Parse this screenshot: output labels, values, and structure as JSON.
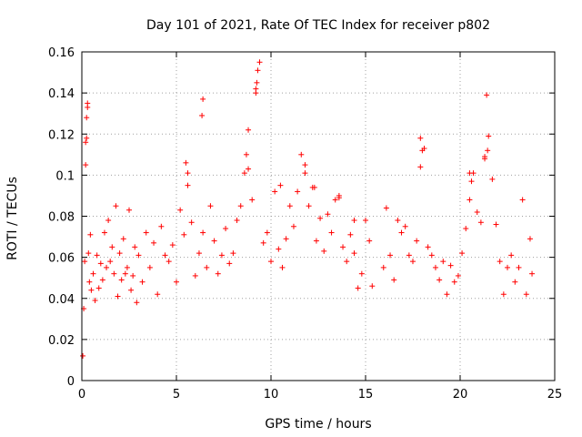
{
  "chart_data": {
    "type": "scatter",
    "title": "Day 101 of 2021, Rate Of TEC Index for receiver p802",
    "xlabel": "GPS time / hours",
    "ylabel": "ROTI / TECUs",
    "xlim": [
      0,
      25
    ],
    "ylim": [
      0,
      0.16
    ],
    "xticks": [
      0,
      5,
      10,
      15,
      20,
      25
    ],
    "xtick_labels": [
      "0",
      "5",
      "10",
      "15",
      "20",
      "25"
    ],
    "yticks": [
      0,
      0.02,
      0.04,
      0.06,
      0.08,
      0.1,
      0.12,
      0.14,
      0.16
    ],
    "ytick_labels": [
      "0",
      "0.02",
      "0.04",
      "0.06",
      "0.08",
      "0.1",
      "0.12",
      "0.14",
      "0.16"
    ],
    "grid": true,
    "marker": "+",
    "marker_color": "#ff0000",
    "data_gap_hours": [
      15.4,
      15.9
    ],
    "series": [
      {
        "name": "ROTI",
        "x": [
          0.05,
          0.1,
          0.15,
          0.2,
          0.25,
          0.3,
          0.35,
          0.4,
          0.45,
          0.5,
          0.6,
          0.7,
          0.8,
          0.9,
          1.0,
          1.1,
          1.2,
          1.3,
          1.4,
          1.5,
          1.6,
          1.7,
          1.8,
          1.9,
          2.0,
          2.1,
          2.2,
          2.3,
          2.4,
          2.5,
          2.6,
          2.7,
          2.8,
          2.9,
          3.0,
          3.2,
          3.4,
          3.6,
          3.8,
          4.0,
          4.2,
          4.4,
          4.6,
          4.8,
          5.0,
          5.2,
          5.4,
          5.6,
          5.8,
          6.0,
          6.2,
          6.4,
          6.6,
          6.8,
          7.0,
          7.2,
          7.4,
          7.6,
          7.8,
          8.0,
          8.2,
          8.4,
          8.6,
          8.8,
          9.0,
          9.2,
          9.4,
          9.6,
          9.8,
          10.0,
          10.2,
          10.4,
          10.6,
          10.8,
          11.0,
          11.2,
          11.4,
          11.6,
          11.8,
          12.0,
          12.2,
          12.4,
          12.6,
          12.8,
          13.0,
          13.2,
          13.4,
          13.6,
          13.8,
          14.0,
          14.2,
          14.4,
          14.6,
          14.8,
          15.0,
          15.2,
          15.35,
          15.95,
          16.1,
          16.3,
          16.5,
          16.7,
          16.9,
          17.1,
          17.3,
          17.5,
          17.7,
          17.9,
          18.1,
          18.3,
          18.5,
          18.7,
          18.9,
          19.1,
          19.3,
          19.5,
          19.7,
          19.9,
          20.1,
          20.3,
          20.5,
          20.7,
          20.9,
          21.1,
          21.3,
          21.5,
          21.7,
          21.9,
          22.1,
          22.3,
          22.5,
          22.7,
          22.9,
          23.1,
          23.3,
          23.5,
          23.7,
          23.8,
          0.2,
          0.25,
          0.3,
          6.35,
          6.4,
          9.2,
          9.25,
          9.3,
          8.7,
          8.8,
          17.9,
          18.0,
          21.4,
          21.45,
          21.3,
          5.5,
          5.6,
          11.8,
          12.3,
          13.6,
          20.5,
          20.6,
          14.4,
          10.5
        ],
        "y": [
          0.012,
          0.035,
          0.058,
          0.105,
          0.118,
          0.135,
          0.062,
          0.048,
          0.071,
          0.044,
          0.052,
          0.039,
          0.061,
          0.045,
          0.057,
          0.049,
          0.072,
          0.055,
          0.078,
          0.058,
          0.065,
          0.052,
          0.085,
          0.041,
          0.062,
          0.049,
          0.069,
          0.052,
          0.055,
          0.083,
          0.044,
          0.051,
          0.065,
          0.038,
          0.061,
          0.048,
          0.072,
          0.055,
          0.067,
          0.042,
          0.075,
          0.061,
          0.058,
          0.066,
          0.048,
          0.083,
          0.071,
          0.095,
          0.077,
          0.051,
          0.062,
          0.072,
          0.055,
          0.085,
          0.068,
          0.052,
          0.061,
          0.074,
          0.057,
          0.062,
          0.078,
          0.085,
          0.101,
          0.122,
          0.088,
          0.142,
          0.155,
          0.067,
          0.072,
          0.058,
          0.092,
          0.064,
          0.055,
          0.069,
          0.085,
          0.075,
          0.092,
          0.11,
          0.101,
          0.085,
          0.094,
          0.068,
          0.079,
          0.063,
          0.081,
          0.072,
          0.088,
          0.089,
          0.065,
          0.058,
          0.071,
          0.062,
          0.045,
          0.052,
          0.078,
          0.068,
          0.046,
          0.055,
          0.084,
          0.061,
          0.049,
          0.078,
          0.072,
          0.075,
          0.061,
          0.058,
          0.068,
          0.104,
          0.113,
          0.065,
          0.061,
          0.055,
          0.049,
          0.058,
          0.042,
          0.056,
          0.048,
          0.051,
          0.062,
          0.074,
          0.088,
          0.101,
          0.082,
          0.077,
          0.109,
          0.119,
          0.098,
          0.076,
          0.058,
          0.042,
          0.055,
          0.061,
          0.048,
          0.055,
          0.088,
          0.042,
          0.069,
          0.052,
          0.116,
          0.128,
          0.133,
          0.129,
          0.137,
          0.14,
          0.145,
          0.151,
          0.11,
          0.103,
          0.118,
          0.112,
          0.139,
          0.112,
          0.108,
          0.106,
          0.101,
          0.105,
          0.094,
          0.09,
          0.101,
          0.097,
          0.078,
          0.095
        ]
      }
    ]
  }
}
